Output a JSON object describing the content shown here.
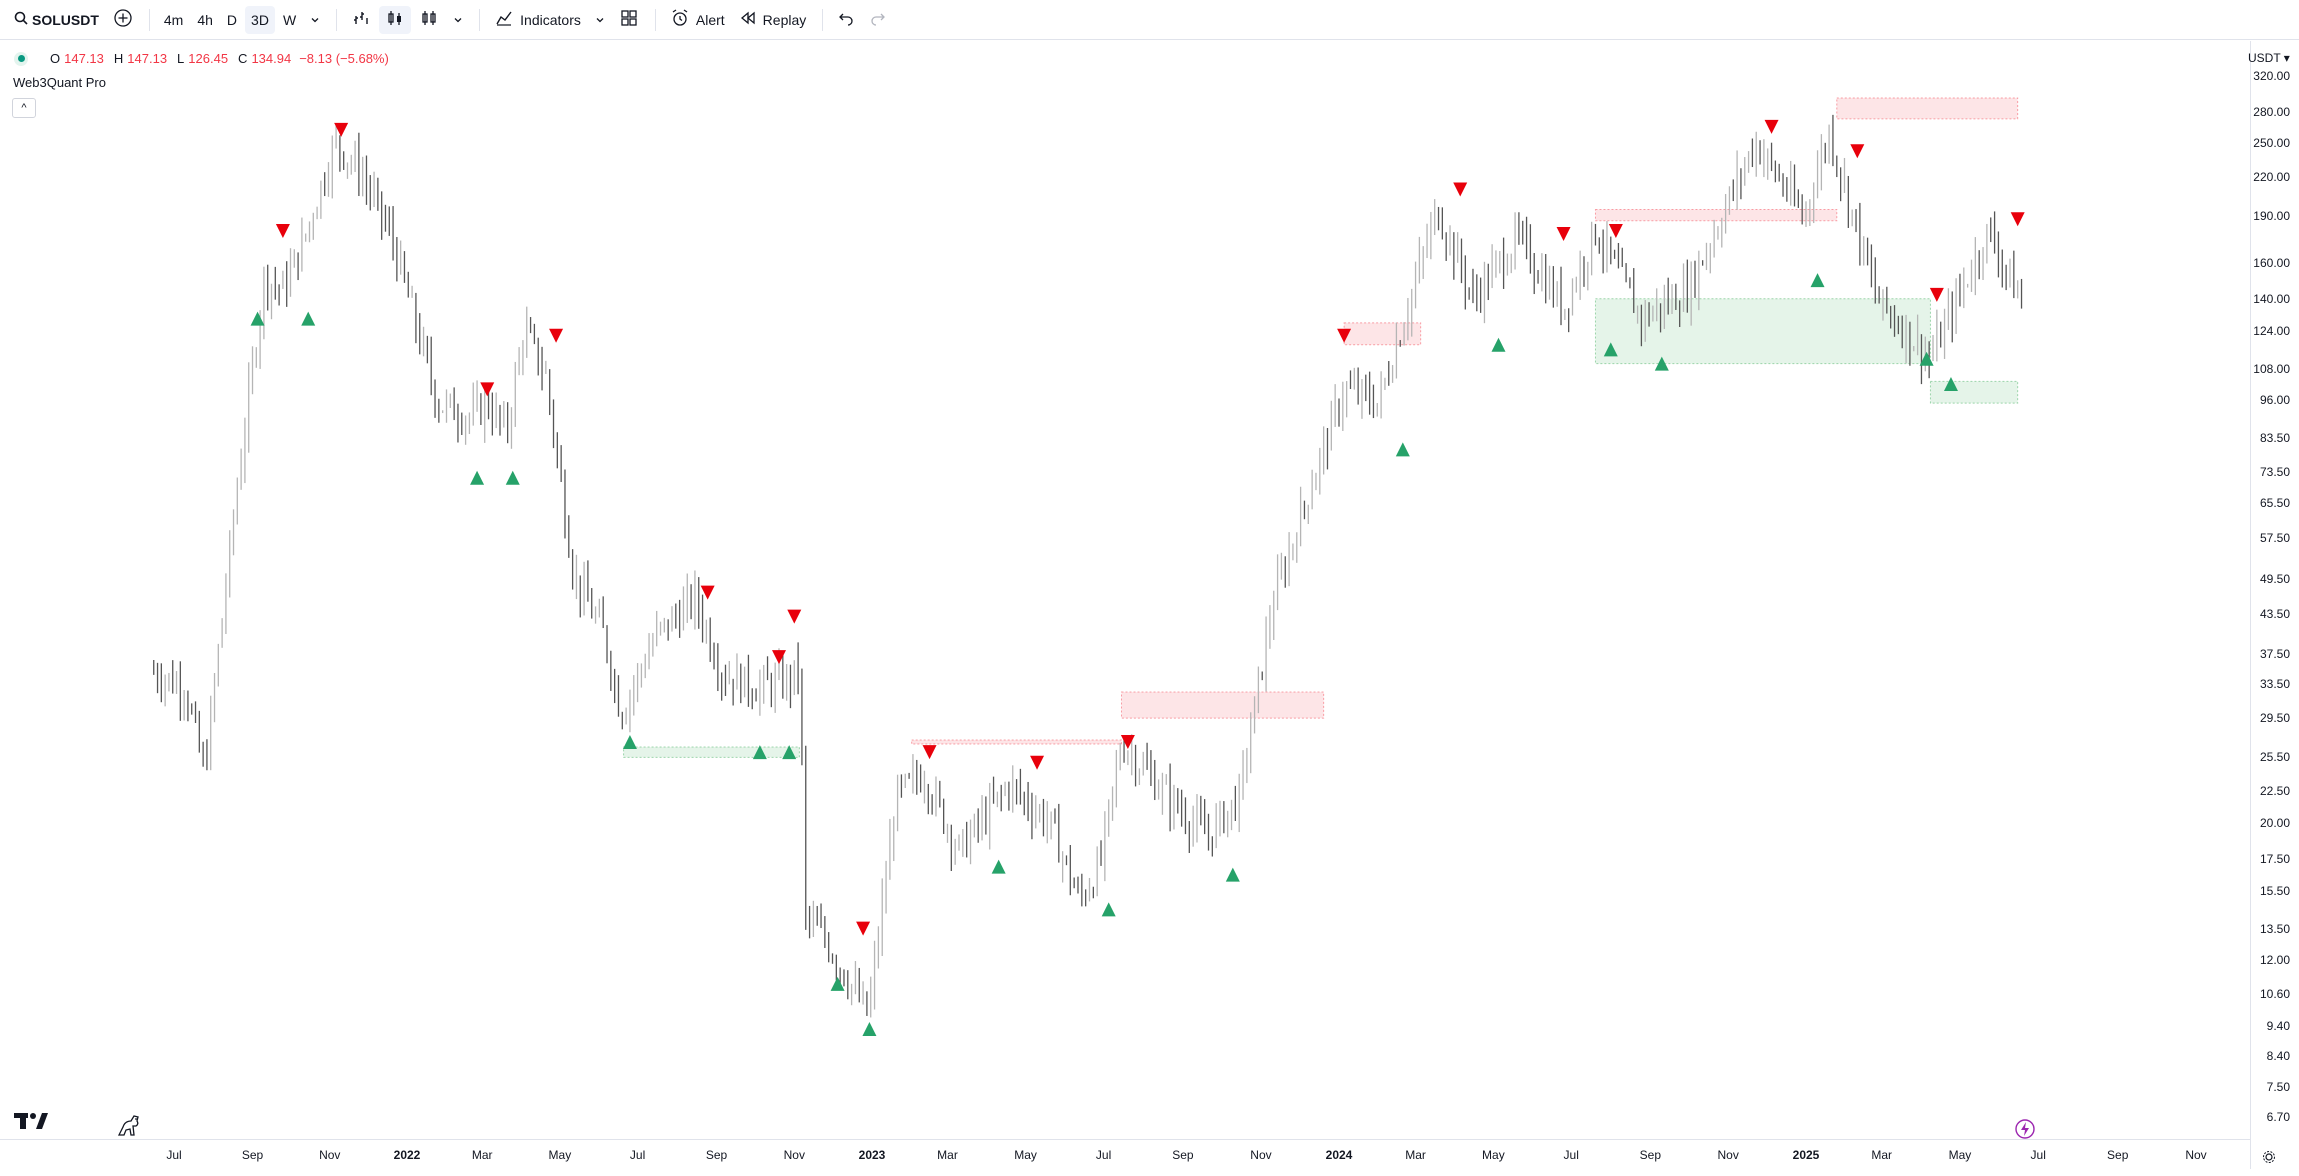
{
  "toolbar": {
    "symbol": "SOLUSDT",
    "intervals": [
      "4m",
      "4h",
      "D",
      "3D",
      "W"
    ],
    "active_interval": "3D",
    "indicators_label": "Indicators",
    "alert_label": "Alert",
    "replay_label": "Replay"
  },
  "legend": {
    "o_label": "O",
    "o_value": "147.13",
    "h_label": "H",
    "h_value": "147.13",
    "l_label": "L",
    "l_value": "126.45",
    "c_label": "C",
    "c_value": "134.94",
    "change": "−8.13 (−5.68%)",
    "value_color": "#f23645"
  },
  "indicator_name": "Web3Quant Pro",
  "collapse_label": "^",
  "currency": "USDT",
  "price_axis": [
    "320.00",
    "280.00",
    "250.00",
    "220.00",
    "190.00",
    "160.00",
    "140.00",
    "124.00",
    "108.00",
    "96.00",
    "83.50",
    "73.50",
    "65.50",
    "57.50",
    "49.50",
    "43.50",
    "37.50",
    "33.50",
    "29.50",
    "25.50",
    "22.50",
    "20.00",
    "17.50",
    "15.50",
    "13.50",
    "12.00",
    "10.60",
    "9.40",
    "8.40",
    "7.50",
    "6.70"
  ],
  "time_axis": [
    {
      "label": "Jul",
      "bold": false
    },
    {
      "label": "Sep",
      "bold": false
    },
    {
      "label": "Nov",
      "bold": false
    },
    {
      "label": "2022",
      "bold": true
    },
    {
      "label": "Mar",
      "bold": false
    },
    {
      "label": "May",
      "bold": false
    },
    {
      "label": "Jul",
      "bold": false
    },
    {
      "label": "Sep",
      "bold": false
    },
    {
      "label": "Nov",
      "bold": false
    },
    {
      "label": "2023",
      "bold": true
    },
    {
      "label": "Mar",
      "bold": false
    },
    {
      "label": "May",
      "bold": false
    },
    {
      "label": "Jul",
      "bold": false
    },
    {
      "label": "Sep",
      "bold": false
    },
    {
      "label": "Nov",
      "bold": false
    },
    {
      "label": "2024",
      "bold": true
    },
    {
      "label": "Mar",
      "bold": false
    },
    {
      "label": "May",
      "bold": false
    },
    {
      "label": "Jul",
      "bold": false
    },
    {
      "label": "Sep",
      "bold": false
    },
    {
      "label": "Nov",
      "bold": false
    },
    {
      "label": "2025",
      "bold": true
    },
    {
      "label": "Mar",
      "bold": false
    },
    {
      "label": "May",
      "bold": false
    },
    {
      "label": "Jul",
      "bold": false
    },
    {
      "label": "Sep",
      "bold": false
    },
    {
      "label": "Nov",
      "bold": false
    }
  ],
  "colors": {
    "bull_signal": "#26a269",
    "bear_signal": "#e8000b",
    "supply_zone": "#f23645",
    "demand_zone": "#34a853",
    "bars": "#5d5d5d"
  },
  "chart_data": {
    "type": "ohlc",
    "symbol": "SOLUSDT",
    "interval": "3D",
    "scale": "log",
    "ylim": [
      6.7,
      320
    ],
    "price_path": [
      [
        "2021-06-15",
        35
      ],
      [
        "2021-07-10",
        33
      ],
      [
        "2021-07-25",
        24
      ],
      [
        "2021-08-20",
        70
      ],
      [
        "2021-09-10",
        150
      ],
      [
        "2021-09-25",
        145
      ],
      [
        "2021-10-10",
        170
      ],
      [
        "2021-11-05",
        250
      ],
      [
        "2021-11-25",
        225
      ],
      [
        "2021-12-20",
        175
      ],
      [
        "2022-01-25",
        95
      ],
      [
        "2022-02-20",
        90
      ],
      [
        "2022-03-05",
        95
      ],
      [
        "2022-03-20",
        85
      ],
      [
        "2022-04-03",
        125
      ],
      [
        "2022-04-20",
        105
      ],
      [
        "2022-05-12",
        50
      ],
      [
        "2022-06-05",
        40
      ],
      [
        "2022-06-18",
        30
      ],
      [
        "2022-07-15",
        40
      ],
      [
        "2022-08-15",
        46
      ],
      [
        "2022-09-05",
        35
      ],
      [
        "2022-10-01",
        33
      ],
      [
        "2022-10-30",
        34
      ],
      [
        "2022-11-05",
        36
      ],
      [
        "2022-11-10",
        14
      ],
      [
        "2022-11-25",
        13
      ],
      [
        "2022-12-29",
        9.8
      ],
      [
        "2023-01-20",
        22
      ],
      [
        "2023-02-10",
        24
      ],
      [
        "2023-03-10",
        18
      ],
      [
        "2023-04-18",
        23
      ],
      [
        "2023-05-20",
        20
      ],
      [
        "2023-06-12",
        15
      ],
      [
        "2023-06-28",
        17
      ],
      [
        "2023-07-15",
        27
      ],
      [
        "2023-08-20",
        22
      ],
      [
        "2023-09-20",
        19
      ],
      [
        "2023-10-15",
        22
      ],
      [
        "2023-11-10",
        45
      ],
      [
        "2023-12-10",
        70
      ],
      [
        "2024-01-05",
        100
      ],
      [
        "2024-02-01",
        95
      ],
      [
        "2024-03-18",
        195
      ],
      [
        "2024-04-15",
        140
      ],
      [
        "2024-05-20",
        175
      ],
      [
        "2024-06-25",
        135
      ],
      [
        "2024-07-20",
        180
      ],
      [
        "2024-08-25",
        130
      ],
      [
        "2024-10-01",
        145
      ],
      [
        "2024-11-22",
        250
      ],
      [
        "2024-12-30",
        190
      ],
      [
        "2025-01-19",
        260
      ],
      [
        "2025-02-25",
        140
      ],
      [
        "2025-04-08",
        112
      ],
      [
        "2025-05-23",
        180
      ],
      [
        "2025-06-20",
        135
      ]
    ],
    "signals": [
      {
        "type": "bull",
        "date": "2021-09-05",
        "price": 130
      },
      {
        "type": "bear",
        "date": "2021-09-25",
        "price": 180
      },
      {
        "type": "bull",
        "date": "2021-10-15",
        "price": 130
      },
      {
        "type": "bear",
        "date": "2021-11-10",
        "price": 262
      },
      {
        "type": "bull",
        "date": "2022-02-25",
        "price": 72
      },
      {
        "type": "bear",
        "date": "2022-03-05",
        "price": 100
      },
      {
        "type": "bull",
        "date": "2022-03-25",
        "price": 72
      },
      {
        "type": "bear",
        "date": "2022-04-28",
        "price": 122
      },
      {
        "type": "bull",
        "date": "2022-06-25",
        "price": 27
      },
      {
        "type": "bear",
        "date": "2022-08-25",
        "price": 47
      },
      {
        "type": "bull",
        "date": "2022-10-05",
        "price": 26
      },
      {
        "type": "bear",
        "date": "2022-10-20",
        "price": 37
      },
      {
        "type": "bull",
        "date": "2022-10-28",
        "price": 26
      },
      {
        "type": "bear",
        "date": "2022-11-01",
        "price": 43
      },
      {
        "type": "bull",
        "date": "2022-12-05",
        "price": 11
      },
      {
        "type": "bear",
        "date": "2022-12-25",
        "price": 13.5
      },
      {
        "type": "bull",
        "date": "2022-12-30",
        "price": 9.3
      },
      {
        "type": "bear",
        "date": "2023-02-15",
        "price": 26
      },
      {
        "type": "bull",
        "date": "2023-04-10",
        "price": 17
      },
      {
        "type": "bear",
        "date": "2023-05-10",
        "price": 25
      },
      {
        "type": "bull",
        "date": "2023-07-05",
        "price": 14.5
      },
      {
        "type": "bear",
        "date": "2023-07-20",
        "price": 27
      },
      {
        "type": "bull",
        "date": "2023-10-10",
        "price": 16.5
      },
      {
        "type": "bear",
        "date": "2024-01-05",
        "price": 122
      },
      {
        "type": "bull",
        "date": "2024-02-20",
        "price": 80
      },
      {
        "type": "bear",
        "date": "2024-04-05",
        "price": 210
      },
      {
        "type": "bull",
        "date": "2024-05-05",
        "price": 118
      },
      {
        "type": "bear",
        "date": "2024-06-25",
        "price": 178
      },
      {
        "type": "bull",
        "date": "2024-08-01",
        "price": 116
      },
      {
        "type": "bear",
        "date": "2024-08-05",
        "price": 180
      },
      {
        "type": "bull",
        "date": "2024-09-10",
        "price": 110
      },
      {
        "type": "bear",
        "date": "2024-12-05",
        "price": 265
      },
      {
        "type": "bull",
        "date": "2025-01-10",
        "price": 150
      },
      {
        "type": "bear",
        "date": "2025-02-10",
        "price": 242
      },
      {
        "type": "bull",
        "date": "2025-04-05",
        "price": 112
      },
      {
        "type": "bear",
        "date": "2025-04-13",
        "price": 142
      },
      {
        "type": "bull",
        "date": "2025-04-24",
        "price": 102
      },
      {
        "type": "bear",
        "date": "2025-06-15",
        "price": 188
      }
    ],
    "zones": [
      {
        "type": "demand",
        "start": "2022-06-20",
        "end": "2022-11-05",
        "top": 26.5,
        "bottom": 25.5
      },
      {
        "type": "supply",
        "start": "2023-02-01",
        "end": "2023-07-15",
        "top": 27.2,
        "bottom": 26.8
      },
      {
        "type": "supply",
        "start": "2023-07-15",
        "end": "2023-12-20",
        "top": 32.5,
        "bottom": 29.5
      },
      {
        "type": "supply",
        "start": "2024-01-05",
        "end": "2024-03-05",
        "top": 128,
        "bottom": 118
      },
      {
        "type": "supply",
        "start": "2024-07-20",
        "end": "2025-01-25",
        "top": 195,
        "bottom": 187
      },
      {
        "type": "demand",
        "start": "2024-07-20",
        "end": "2025-04-08",
        "top": 140,
        "bottom": 110
      },
      {
        "type": "supply",
        "start": "2025-01-25",
        "end": "2025-06-15",
        "top": 295,
        "bottom": 273
      },
      {
        "type": "demand",
        "start": "2025-04-08",
        "end": "2025-06-15",
        "top": 103,
        "bottom": 95
      }
    ]
  }
}
